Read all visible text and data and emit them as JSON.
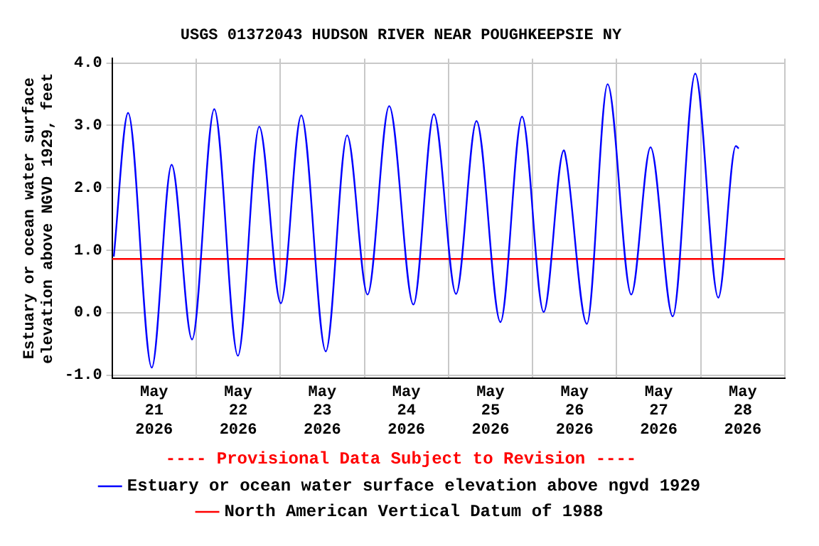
{
  "chart_data": {
    "type": "line",
    "title": "USGS 01372043 HUDSON RIVER NEAR POUGHKEEPSIE NY",
    "ylabel": "Estuary or ocean water surface\nelevation above NGVD 1929, feet",
    "annotations": [
      "---- Provisional Data Subject to Revision ----"
    ],
    "xlim": [
      "2026-05-21T00:00",
      "2026-05-29T00:00"
    ],
    "xticks": [
      {
        "value": "2026-05-21T00:00",
        "label": null
      },
      {
        "value": "2026-05-21T12:00",
        "label": "May\n21\n2026"
      },
      {
        "value": "2026-05-22T00:00",
        "label": null
      },
      {
        "value": "2026-05-22T12:00",
        "label": "May\n22\n2026"
      },
      {
        "value": "2026-05-23T00:00",
        "label": null
      },
      {
        "value": "2026-05-23T12:00",
        "label": "May\n23\n2026"
      },
      {
        "value": "2026-05-24T00:00",
        "label": null
      },
      {
        "value": "2026-05-24T12:00",
        "label": "May\n24\n2026"
      },
      {
        "value": "2026-05-25T00:00",
        "label": null
      },
      {
        "value": "2026-05-25T12:00",
        "label": "May\n25\n2026"
      },
      {
        "value": "2026-05-26T00:00",
        "label": null
      },
      {
        "value": "2026-05-26T12:00",
        "label": "May\n26\n2026"
      },
      {
        "value": "2026-05-27T00:00",
        "label": null
      },
      {
        "value": "2026-05-27T12:00",
        "label": "May\n27\n2026"
      },
      {
        "value": "2026-05-28T00:00",
        "label": null
      },
      {
        "value": "2026-05-28T12:00",
        "label": "May\n28\n2026"
      },
      {
        "value": "2026-05-29T00:00",
        "label": null
      }
    ],
    "ylim": [
      -1.05,
      4.07
    ],
    "yticks": [
      {
        "value": -1,
        "label": "-1.0"
      },
      {
        "value": 0,
        "label": "0.0"
      },
      {
        "value": 1,
        "label": "1.0"
      },
      {
        "value": 2,
        "label": "2.0"
      },
      {
        "value": 3,
        "label": "3.0"
      },
      {
        "value": 4,
        "label": "4.0"
      }
    ],
    "grid": true,
    "legend": "bottom",
    "marker": "none",
    "line_style": "solid",
    "series": [
      {
        "name": "Estuary or ocean water surface elevation above ngvd 1929",
        "color": "#0000ff",
        "x": [
          "2026-05-21T00:30",
          "2026-05-21T04:35",
          "2026-05-21T11:20",
          "2026-05-21T17:00",
          "2026-05-21T22:50",
          "2026-05-22T05:10",
          "2026-05-22T11:55",
          "2026-05-22T18:00",
          "2026-05-23T00:10",
          "2026-05-23T06:00",
          "2026-05-23T13:00",
          "2026-05-23T19:05",
          "2026-05-24T00:55",
          "2026-05-24T07:05",
          "2026-05-24T14:00",
          "2026-05-24T19:50",
          "2026-05-25T02:10",
          "2026-05-25T08:00",
          "2026-05-25T14:50",
          "2026-05-25T21:00",
          "2026-05-26T03:10",
          "2026-05-26T08:55",
          "2026-05-26T09:40",
          "2026-05-26T15:30",
          "2026-05-26T21:25",
          "2026-05-27T04:10",
          "2026-05-27T09:40",
          "2026-05-27T16:00",
          "2026-05-27T22:25",
          "2026-05-28T05:00",
          "2026-05-28T10:00",
          "2026-05-28T10:50"
        ],
        "values": [
          0.9,
          3.2,
          -0.88,
          2.37,
          -0.43,
          3.26,
          -0.69,
          2.98,
          0.15,
          3.16,
          -0.62,
          2.84,
          0.29,
          3.31,
          0.13,
          3.18,
          0.3,
          3.07,
          -0.15,
          3.14,
          0.01,
          2.6,
          2.43,
          -0.18,
          3.66,
          0.29,
          2.65,
          -0.06,
          3.83,
          0.24,
          2.67,
          2.63
        ]
      },
      {
        "name": "North American Vertical Datum of 1988",
        "color": "#ff0000",
        "x": [
          "2026-05-21T00:00",
          "2026-05-29T00:00"
        ],
        "values": [
          0.86,
          0.86
        ]
      }
    ]
  }
}
